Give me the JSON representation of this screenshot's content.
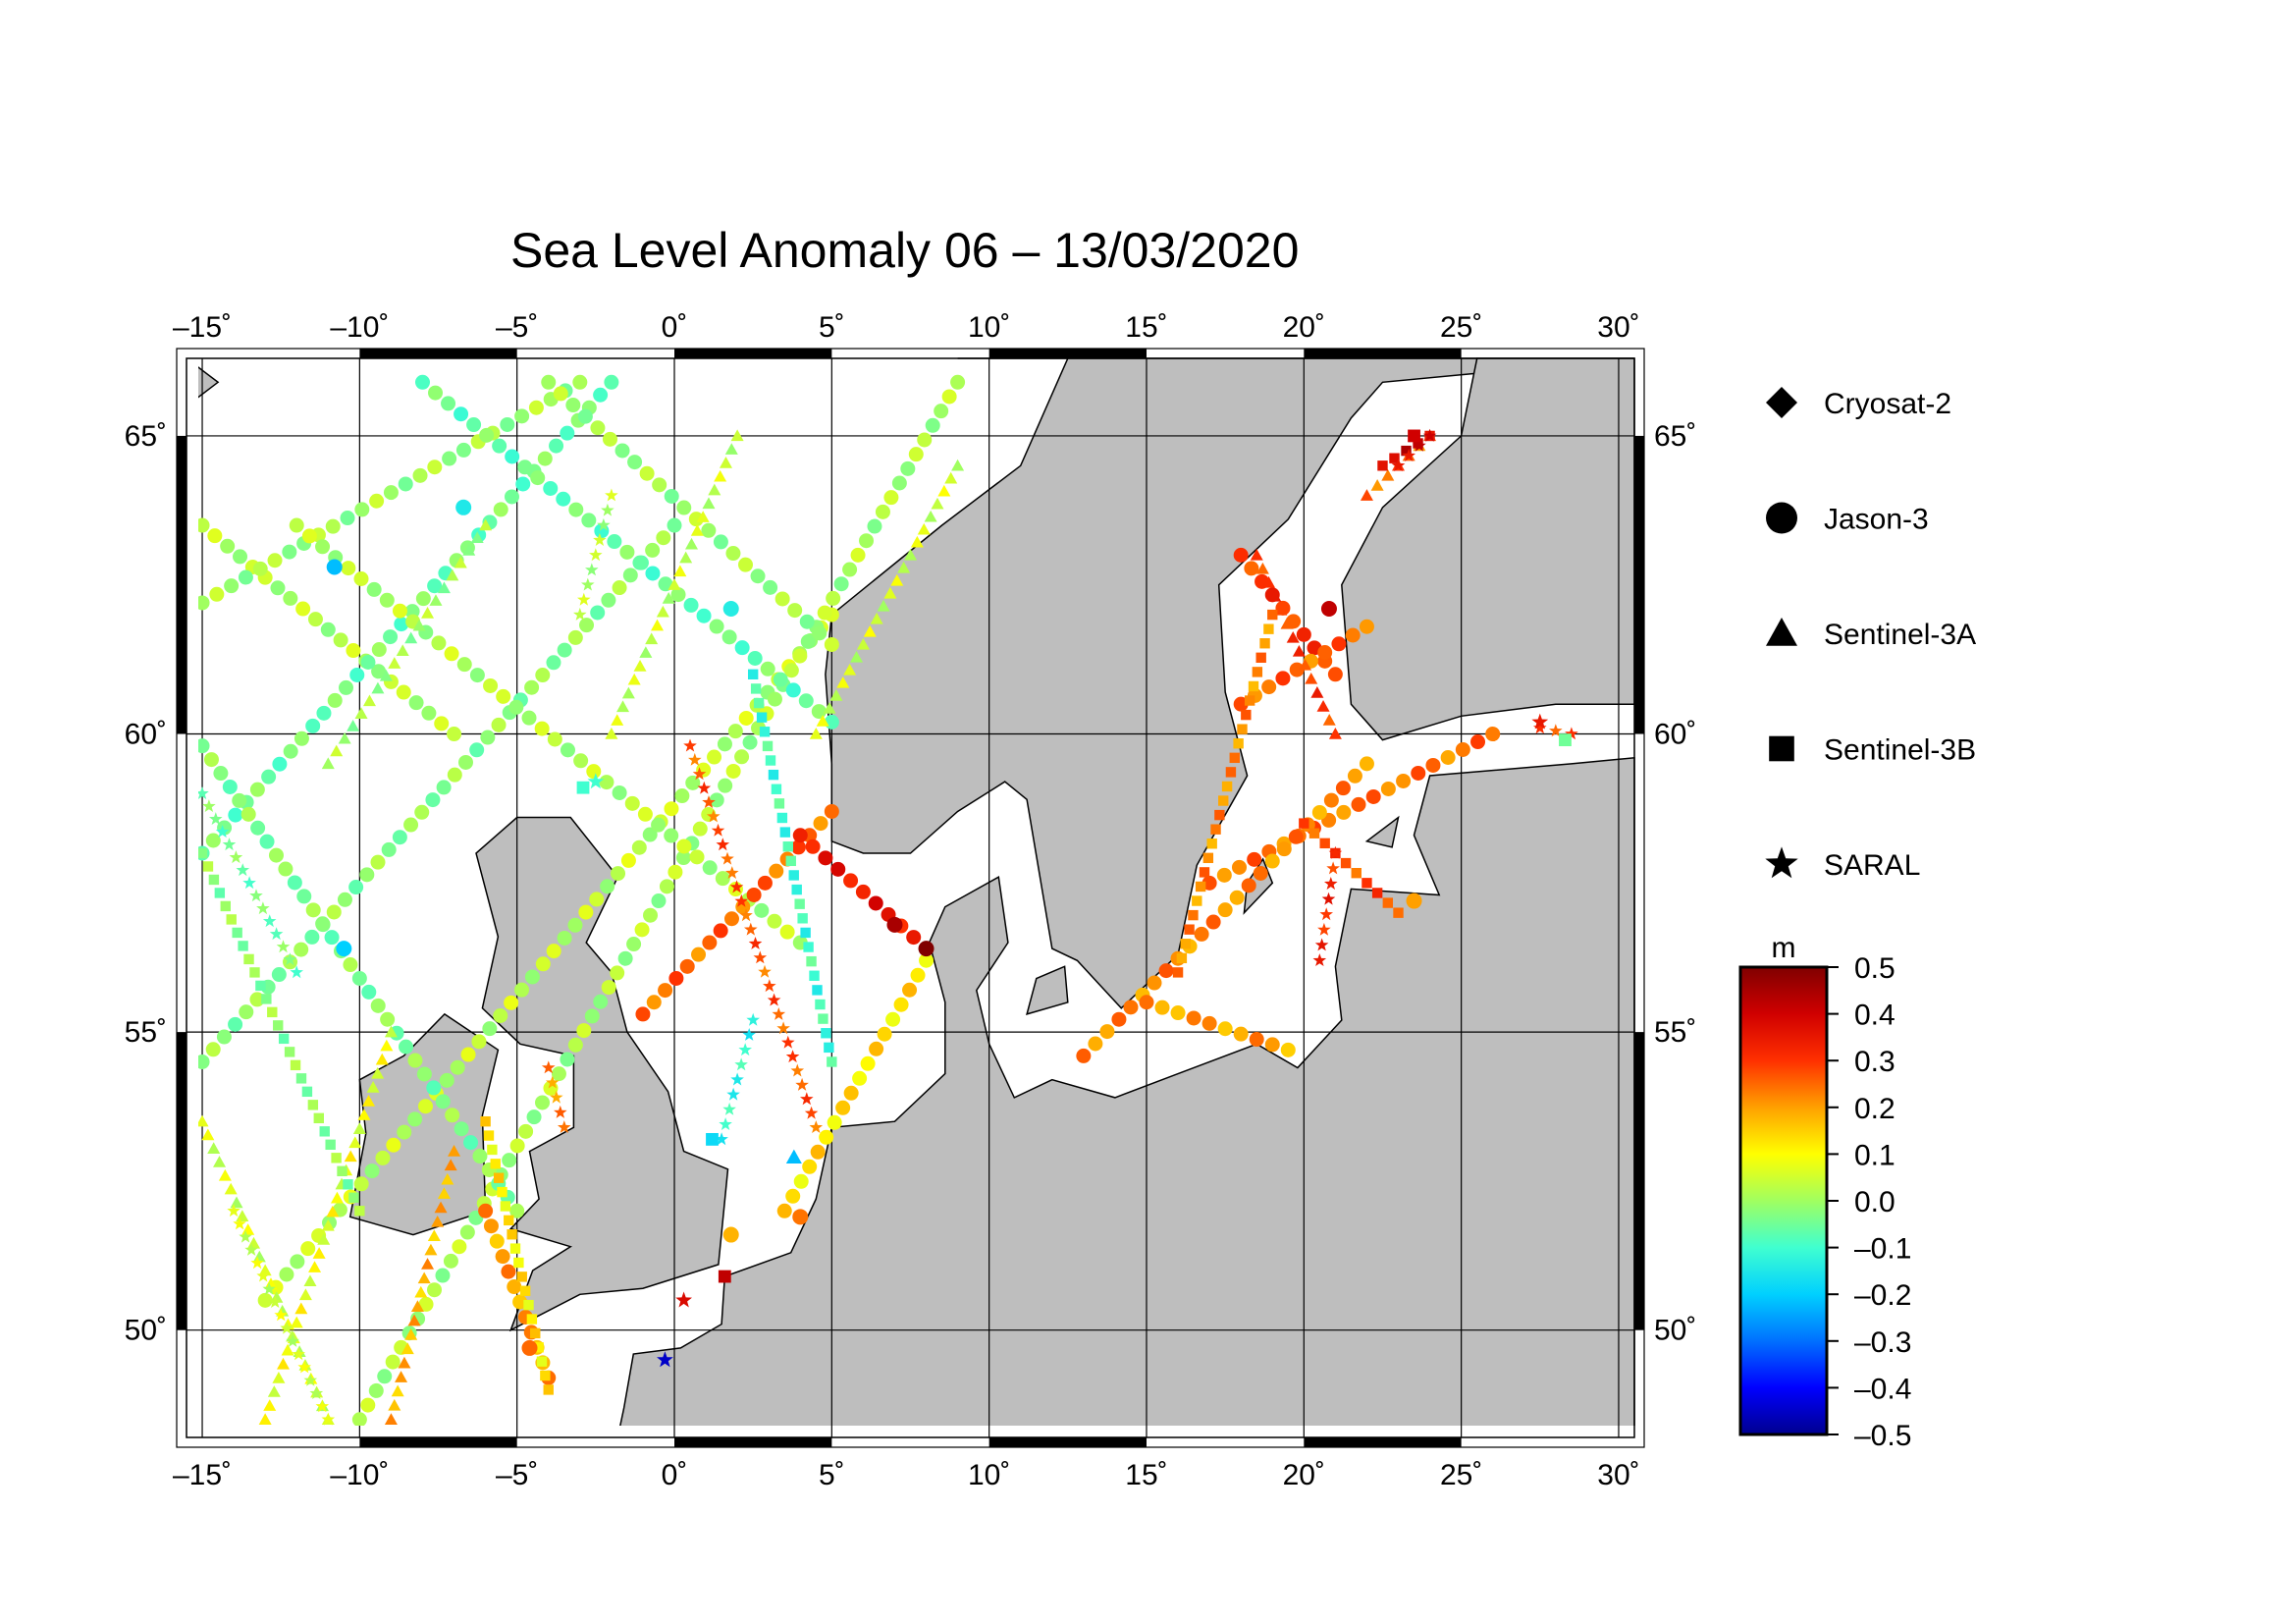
{
  "title": "Sea Level Anomaly 06 – 13/03/2020",
  "axes": {
    "lon_ticks": [
      "–15˚",
      "–10˚",
      "–5˚",
      "0˚",
      "5˚",
      "10˚",
      "15˚",
      "20˚",
      "25˚",
      "30˚"
    ],
    "lat_ticks": [
      "65˚",
      "60˚",
      "55˚",
      "50˚"
    ],
    "lon_range": [
      -15.5,
      30.5
    ],
    "lat_range": [
      48.2,
      66.3
    ]
  },
  "legend": {
    "items": [
      {
        "label": "Cryosat-2",
        "icon": "diamond-icon"
      },
      {
        "label": "Jason-3",
        "icon": "circle-icon"
      },
      {
        "label": "Sentinel-3A",
        "icon": "triangle-icon"
      },
      {
        "label": "Sentinel-3B",
        "icon": "square-icon"
      },
      {
        "label": "SARAL",
        "icon": "star-icon"
      }
    ]
  },
  "colorbar": {
    "unit": "m",
    "ticks": [
      "0.5",
      "0.4",
      "0.3",
      "0.2",
      "0.1",
      "0.0",
      "–0.1",
      "–0.2",
      "–0.3",
      "–0.4",
      "–0.5"
    ],
    "range": [
      -0.5,
      0.5
    ],
    "colors": [
      "#00008f",
      "#0000ff",
      "#0070ff",
      "#00d0ff",
      "#40ffd0",
      "#a0ff60",
      "#ffff00",
      "#ffa000",
      "#ff3000",
      "#d00000",
      "#800000"
    ]
  },
  "chart_data": {
    "type": "scatter",
    "tracks": [
      {
        "mission": "Jason-3",
        "from": [
          -15,
          63.5
        ],
        "to": [
          -7,
          60.0
        ],
        "sla": 0.02
      },
      {
        "mission": "Jason-3",
        "from": [
          -15,
          62.2
        ],
        "to": [
          -3,
          65.9
        ],
        "sla": 0.0
      },
      {
        "mission": "Jason-3",
        "from": [
          -15,
          58.0
        ],
        "to": [
          -2,
          65.9
        ],
        "sla": -0.05
      },
      {
        "mission": "Jason-3",
        "from": [
          -15,
          54.5
        ],
        "to": [
          0,
          63.5
        ],
        "sla": -0.02
      },
      {
        "mission": "Jason-3",
        "from": [
          -13,
          50.5
        ],
        "to": [
          5,
          62.0
        ],
        "sla": 0.03
      },
      {
        "mission": "Jason-3",
        "from": [
          -10,
          48.5
        ],
        "to": [
          9,
          65.9
        ],
        "sla": 0.01
      },
      {
        "mission": "Jason-3",
        "from": [
          -15,
          59.8
        ],
        "to": [
          -5,
          52.0
        ],
        "sla": -0.03
      },
      {
        "mission": "Jason-3",
        "from": [
          -12,
          63.5
        ],
        "to": [
          4,
          56.5
        ],
        "sla": 0.02
      },
      {
        "mission": "Jason-3",
        "from": [
          -8,
          65.9
        ],
        "to": [
          5,
          60.2
        ],
        "sla": -0.06
      },
      {
        "mission": "Jason-3",
        "from": [
          -4,
          65.9
        ],
        "to": [
          5,
          61.5
        ],
        "sla": 0.0
      },
      {
        "mission": "Jason-3",
        "from": [
          -1,
          55.3
        ],
        "to": [
          5,
          58.7
        ],
        "sla": 0.25
      },
      {
        "mission": "Jason-3",
        "from": [
          4,
          58.3
        ],
        "to": [
          8,
          56.4
        ],
        "sla": 0.35
      },
      {
        "mission": "Jason-3",
        "from": [
          3.5,
          52.0
        ],
        "to": [
          8,
          56.2
        ],
        "sla": 0.13
      },
      {
        "mission": "Jason-3",
        "from": [
          -4,
          49.2
        ],
        "to": [
          -6,
          52.0
        ],
        "sla": 0.2
      },
      {
        "mission": "Jason-3",
        "from": [
          17,
          57.5
        ],
        "to": [
          26,
          60.0
        ],
        "sla": 0.24
      },
      {
        "mission": "Jason-3",
        "from": [
          13,
          54.6
        ],
        "to": [
          22,
          59.5
        ],
        "sla": 0.22
      },
      {
        "mission": "Jason-3",
        "from": [
          15,
          55.5
        ],
        "to": [
          19.5,
          54.7
        ],
        "sla": 0.2
      },
      {
        "mission": "Jason-3",
        "from": [
          18,
          63.0
        ],
        "to": [
          21,
          61.0
        ],
        "sla": 0.3
      },
      {
        "mission": "Jason-3",
        "from": [
          18,
          60.5
        ],
        "to": [
          22,
          61.8
        ],
        "sla": 0.25
      },
      {
        "mission": "Sentinel-3A",
        "from": [
          -15,
          53.5
        ],
        "to": [
          -11,
          48.5
        ],
        "sla": 0.05
      },
      {
        "mission": "Sentinel-3A",
        "from": [
          -13,
          48.5
        ],
        "to": [
          -9,
          55.0
        ],
        "sla": 0.08
      },
      {
        "mission": "Sentinel-3A",
        "from": [
          -9,
          48.5
        ],
        "to": [
          -7,
          53.0
        ],
        "sla": 0.18
      },
      {
        "mission": "Sentinel-3A",
        "from": [
          -11,
          59.5
        ],
        "to": [
          -6,
          63.5
        ],
        "sla": 0.0
      },
      {
        "mission": "Sentinel-3A",
        "from": [
          -2,
          60.0
        ],
        "to": [
          2,
          65.0
        ],
        "sla": 0.04
      },
      {
        "mission": "Sentinel-3A",
        "from": [
          4.5,
          60.0
        ],
        "to": [
          9,
          64.5
        ],
        "sla": 0.05
      },
      {
        "mission": "Sentinel-3A",
        "from": [
          18.5,
          63.0
        ],
        "to": [
          21,
          60.0
        ],
        "sla": 0.3
      },
      {
        "mission": "Sentinel-3A",
        "from": [
          22,
          64.0
        ],
        "to": [
          24,
          65.0
        ],
        "sla": 0.25
      },
      {
        "mission": "Sentinel-3B",
        "from": [
          -15,
          58.0
        ],
        "to": [
          -10,
          52.0
        ],
        "sla": -0.02
      },
      {
        "mission": "Sentinel-3B",
        "from": [
          -6,
          53.5
        ],
        "to": [
          -4,
          49.0
        ],
        "sla": 0.12
      },
      {
        "mission": "Sentinel-3B",
        "from": [
          2.5,
          61.0
        ],
        "to": [
          5,
          54.5
        ],
        "sla": -0.1
      },
      {
        "mission": "Sentinel-3B",
        "from": [
          16,
          56.0
        ],
        "to": [
          19,
          62.0
        ],
        "sla": 0.22
      },
      {
        "mission": "Sentinel-3B",
        "from": [
          20,
          58.5
        ],
        "to": [
          23,
          57.0
        ],
        "sla": 0.28
      },
      {
        "mission": "Sentinel-3B",
        "from": [
          22.5,
          64.5
        ],
        "to": [
          24,
          65.0
        ],
        "sla": 0.4
      },
      {
        "mission": "SARAL",
        "from": [
          -15,
          59.0
        ],
        "to": [
          -12,
          56.0
        ],
        "sla": -0.05
      },
      {
        "mission": "SARAL",
        "from": [
          -14,
          52.0
        ],
        "to": [
          -11,
          48.5
        ],
        "sla": 0.05
      },
      {
        "mission": "SARAL",
        "from": [
          0.5,
          59.8
        ],
        "to": [
          4.5,
          53.4
        ],
        "sla": 0.27
      },
      {
        "mission": "SARAL",
        "from": [
          1.5,
          53.2
        ],
        "to": [
          2.5,
          55.2
        ],
        "sla": -0.12
      },
      {
        "mission": "SARAL",
        "from": [
          -3,
          62.0
        ],
        "to": [
          -2,
          64.0
        ],
        "sla": 0.02
      },
      {
        "mission": "SARAL",
        "from": [
          -4,
          54.4
        ],
        "to": [
          -3.5,
          53.4
        ],
        "sla": 0.22
      },
      {
        "mission": "SARAL",
        "from": [
          21,
          58.0
        ],
        "to": [
          20.5,
          56.2
        ],
        "sla": 0.32
      },
      {
        "mission": "SARAL",
        "from": [
          23,
          64.5
        ],
        "to": [
          24,
          65.0
        ],
        "sla": 0.38
      },
      {
        "mission": "SARAL",
        "from": [
          27.5,
          60.1
        ],
        "to": [
          28.5,
          60.0
        ],
        "sla": 0.3
      }
    ],
    "points": [
      {
        "mission": "Jason-3",
        "lon": -10.8,
        "lat": 62.8,
        "sla": -0.22
      },
      {
        "mission": "Jason-3",
        "lon": -6.7,
        "lat": 63.8,
        "sla": -0.15
      },
      {
        "mission": "Jason-3",
        "lon": -10.5,
        "lat": 56.4,
        "sla": -0.2
      },
      {
        "mission": "Jason-3",
        "lon": 1.8,
        "lat": 62.1,
        "sla": -0.14
      },
      {
        "mission": "Jason-3",
        "lon": 8.0,
        "lat": 56.4,
        "sla": 0.5
      },
      {
        "mission": "Jason-3",
        "lon": 7.0,
        "lat": 56.8,
        "sla": 0.45
      },
      {
        "mission": "Jason-3",
        "lon": -4.6,
        "lat": 49.7,
        "sla": 0.25
      },
      {
        "mission": "Jason-3",
        "lon": 20.8,
        "lat": 62.1,
        "sla": 0.42
      },
      {
        "mission": "Jason-3",
        "lon": 23.5,
        "lat": 57.2,
        "sla": 0.2
      },
      {
        "mission": "Jason-3",
        "lon": 4.0,
        "lat": 51.9,
        "sla": 0.24
      },
      {
        "mission": "Jason-3",
        "lon": 1.8,
        "lat": 51.6,
        "sla": 0.18
      },
      {
        "mission": "Sentinel-3A",
        "lon": 3.8,
        "lat": 52.9,
        "sla": -0.22
      },
      {
        "mission": "Sentinel-3B",
        "lon": -2.9,
        "lat": 59.1,
        "sla": -0.1
      },
      {
        "mission": "Sentinel-3B",
        "lon": 1.2,
        "lat": 53.2,
        "sla": -0.18
      },
      {
        "mission": "Sentinel-3B",
        "lon": 1.6,
        "lat": 50.9,
        "sla": 0.42
      },
      {
        "mission": "Sentinel-3B",
        "lon": 23.5,
        "lat": 65.0,
        "sla": 0.4
      },
      {
        "mission": "Sentinel-3B",
        "lon": 28.3,
        "lat": 59.9,
        "sla": -0.05
      },
      {
        "mission": "SARAL",
        "lon": -0.3,
        "lat": 49.5,
        "sla": -0.45
      },
      {
        "mission": "SARAL",
        "lon": 0.3,
        "lat": 50.5,
        "sla": 0.38
      },
      {
        "mission": "SARAL",
        "lon": -2.5,
        "lat": 59.2,
        "sla": -0.1
      },
      {
        "mission": "SARAL",
        "lon": 27.5,
        "lat": 60.2,
        "sla": 0.35
      }
    ]
  }
}
